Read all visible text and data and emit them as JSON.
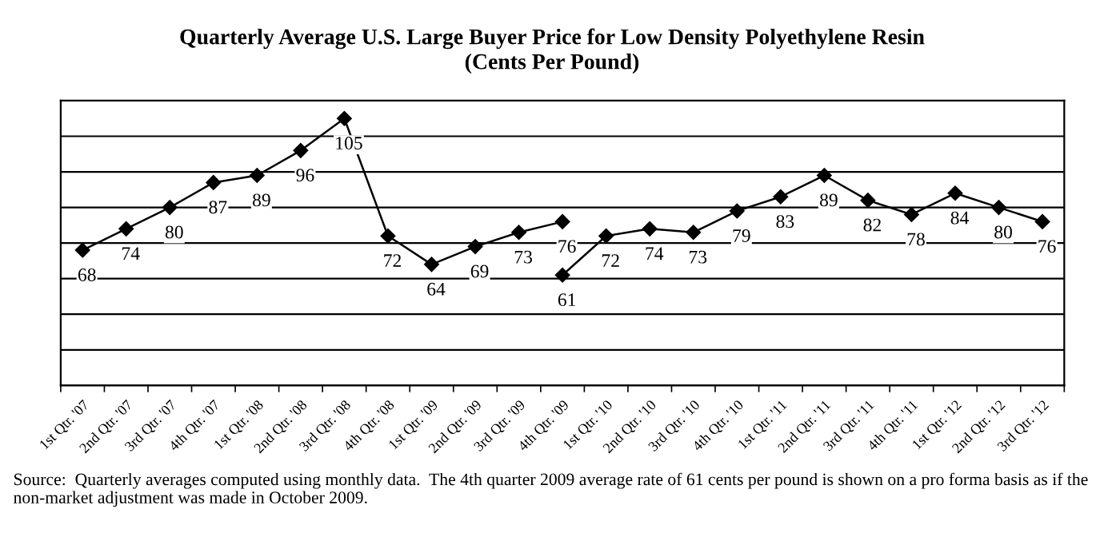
{
  "chart_data": {
    "type": "line",
    "title": "Quarterly Average U.S. Large Buyer Price for Low Density Polyethylene Resin",
    "subtitle": "(Cents Per Pound)",
    "categories": [
      "1st Qtr. '07",
      "2nd Qtr. '07",
      "3rd Qtr. '07",
      "4th Qtr. '07",
      "1st Qtr. '08",
      "2nd Qtr. '08",
      "3rd Qtr. '08",
      "4th Qtr. '08",
      "1st Qtr. '09",
      "2nd Qtr. '09",
      "3rd Qtr. '09",
      "4th Qtr. '09",
      "1st Qtr. '10",
      "2nd Qtr. '10",
      "3rd Qtr. '10",
      "4th Qtr. '10",
      "1st Qtr. '11",
      "2nd Qtr. '11",
      "3rd Qtr. '11",
      "4th Qtr. '11",
      "1st Qtr. '12",
      "2nd Qtr. '12",
      "3rd Qtr. '12"
    ],
    "series": [
      {
        "color": "#000000",
        "values": [
          68,
          74,
          80,
          87,
          89,
          96,
          105,
          72,
          64,
          69,
          73,
          76,
          null,
          null,
          null,
          null,
          null,
          null,
          null,
          null,
          null,
          null,
          null
        ]
      },
      {
        "color": "#000000",
        "values": [
          null,
          null,
          null,
          null,
          null,
          null,
          null,
          null,
          null,
          null,
          null,
          61,
          72,
          74,
          73,
          79,
          83,
          89,
          82,
          78,
          84,
          80,
          76
        ]
      }
    ],
    "ylim": [
      30,
      110
    ],
    "yticks": [
      {
        "value": 30,
        "label": null
      },
      {
        "value": 40,
        "label": null
      },
      {
        "value": 50,
        "label": null
      },
      {
        "value": 60,
        "label": null
      },
      {
        "value": 70,
        "label": null
      },
      {
        "value": 80,
        "label": null
      },
      {
        "value": 90,
        "label": null
      },
      {
        "value": 100,
        "label": null
      },
      {
        "value": 110,
        "label": null
      }
    ],
    "tick_labels": "x",
    "grid": "y",
    "marker": "diamond",
    "line_style": "solid",
    "data_labels": true,
    "annotations": [
      "Source:  Quarterly averages computed using monthly data.  The 4th quarter 2009 average rate of 61 cents per pound is shown on a pro forma basis as if the non-market adjustment was made in October 2009."
    ]
  }
}
